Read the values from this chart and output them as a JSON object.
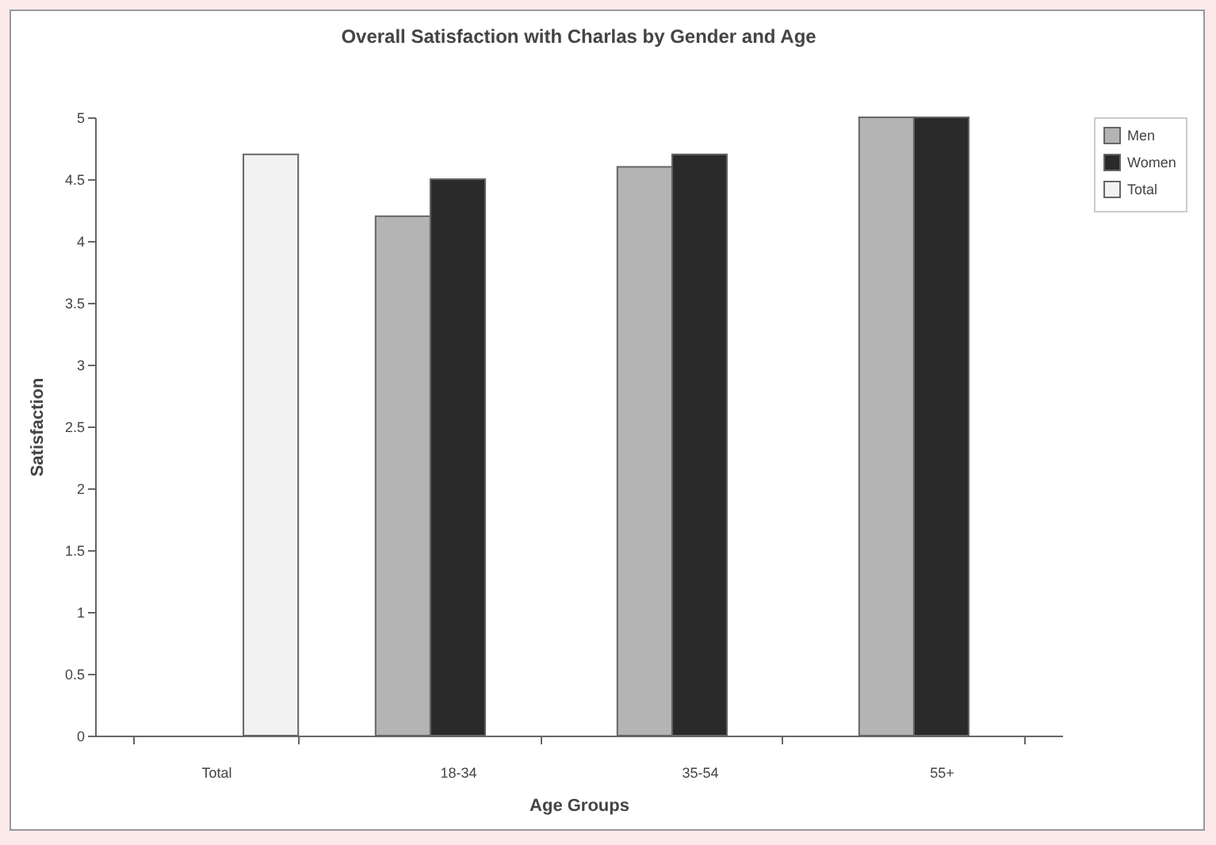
{
  "chart_data": {
    "type": "bar",
    "title": "Overall Satisfaction with Charlas by Gender and Age",
    "xlabel": "Age Groups",
    "ylabel": "Satisfaction",
    "categories": [
      "Total",
      "18-34",
      "35-54",
      "55+"
    ],
    "series": [
      {
        "name": "Men",
        "color": "#b4b4b4",
        "values": [
          null,
          4.2,
          4.6,
          5
        ]
      },
      {
        "name": "Women",
        "color": "#2a2a2a",
        "values": [
          null,
          4.5,
          4.7,
          5
        ]
      },
      {
        "name": "Total",
        "color": "#f2f2f2",
        "values": [
          4.7,
          null,
          null,
          null
        ]
      }
    ],
    "ylim": [
      0,
      5
    ],
    "yticks": [
      0,
      0.5,
      1,
      1.5,
      2,
      2.5,
      3,
      3.5,
      4,
      4.5,
      5
    ],
    "grid": false,
    "legend": "right"
  }
}
